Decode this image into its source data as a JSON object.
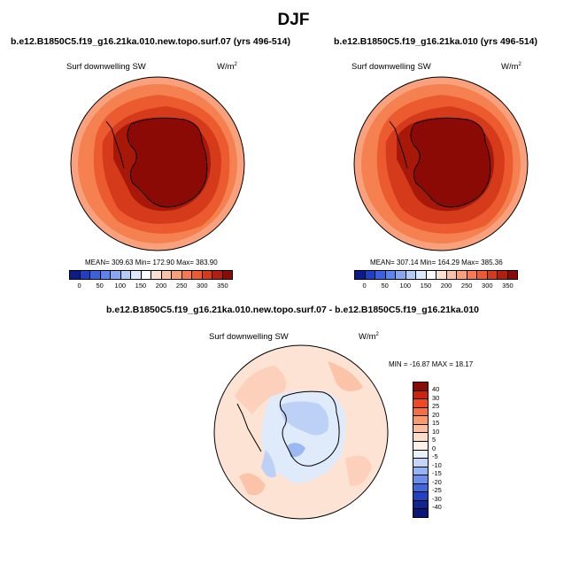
{
  "title": "DJF",
  "panels": [
    {
      "case": "b.e12.B1850C5.f19_g16.21ka.010.new.topo.surf.07 (yrs 496-514)",
      "variable": "Surf downwelling SW",
      "units_base": "W/m",
      "units_exp": "2",
      "stats": "MEAN= 309.63  Min= 172.90  Max= 383.90"
    },
    {
      "case": "b.e12.B1850C5.f19_g16.21ka.010 (yrs 496-514)",
      "variable": "Surf downwelling SW",
      "units_base": "W/m",
      "units_exp": "2",
      "stats": "MEAN= 307.14  Min= 164.29  Max= 385.36"
    }
  ],
  "diff_panel": {
    "case": "b.e12.B1850C5.f19_g16.21ka.010.new.topo.surf.07 - b.e12.B1850C5.f19_g16.21ka.010",
    "variable": "Surf downwelling SW",
    "units_base": "W/m",
    "units_exp": "2",
    "stats": "MIN = -16.87 MAX =  18.17"
  },
  "colorbar_abs": {
    "labels": [
      "0",
      "50",
      "100",
      "150",
      "200",
      "250",
      "300",
      "350"
    ],
    "colors": [
      "#0c1a8c",
      "#1f3fc8",
      "#3a62e0",
      "#5b85ec",
      "#86a8f2",
      "#b3cbf7",
      "#dce8fb",
      "#ffffff",
      "#fde0d2",
      "#fbc1a6",
      "#f99f7a",
      "#f57a50",
      "#ee5a2f",
      "#d8391a",
      "#b51e0e",
      "#8a0a05"
    ]
  },
  "colorbar_diff": {
    "labels": [
      "40",
      "30",
      "25",
      "20",
      "15",
      "10",
      "5",
      "0",
      "-5",
      "-10",
      "-15",
      "-20",
      "-25",
      "-30",
      "-40"
    ],
    "colors": [
      "#8a0a05",
      "#c7250f",
      "#ee4a22",
      "#f6703d",
      "#f99a6c",
      "#fbbd9b",
      "#fddcc8",
      "#fff1e8",
      "#e8f0fc",
      "#c3d5f8",
      "#95b4f3",
      "#6a8fec",
      "#4068de",
      "#2143c2",
      "#11258f",
      "#0a157a"
    ]
  },
  "map_colors": {
    "dark": "#8c0a05",
    "d1": "#c52a12",
    "d2": "#e8502c",
    "d3": "#f2764c",
    "d4": "#f79a74",
    "d5": "#fbc1a6"
  }
}
